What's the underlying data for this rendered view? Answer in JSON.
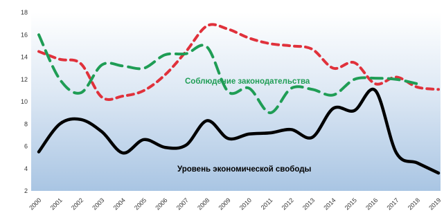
{
  "chart_data": {
    "type": "line",
    "title": "",
    "xlabel": "",
    "ylabel": "",
    "categories": [
      "2000",
      "2001",
      "2002",
      "2003",
      "2004",
      "2005",
      "2006",
      "2007",
      "2008",
      "2009",
      "2010",
      "2011",
      "2012",
      "2013",
      "2014",
      "2015",
      "2016",
      "2017",
      "2018",
      "2019"
    ],
    "ylim": [
      2,
      18
    ],
    "yticks": [
      2,
      4,
      6,
      8,
      10,
      12,
      14,
      16,
      18
    ],
    "grid": false,
    "legend": "none",
    "series": [
      {
        "name": "Уровень экономической свободы",
        "color": "#000000",
        "style": "solid",
        "values": [
          5.5,
          8.0,
          8.4,
          7.3,
          5.4,
          6.6,
          5.9,
          6.1,
          8.3,
          6.7,
          7.1,
          7.2,
          7.5,
          6.8,
          9.4,
          9.2,
          11.0,
          5.4,
          4.5,
          3.6
        ]
      },
      {
        "name": "Соблюдение законодательства",
        "color": "#1f9d55",
        "style": "dashed",
        "values": [
          16.0,
          12.0,
          10.8,
          13.3,
          13.2,
          13.0,
          14.2,
          14.3,
          14.9,
          10.9,
          11.2,
          9.0,
          11.2,
          11.1,
          10.6,
          12.0,
          12.1,
          12.0,
          11.6,
          null
        ]
      },
      {
        "name": "",
        "color": "#e0313b",
        "style": "dashed",
        "values": [
          14.5,
          13.8,
          13.4,
          10.4,
          10.5,
          11.0,
          12.4,
          14.5,
          16.8,
          16.5,
          15.7,
          15.2,
          15.0,
          14.7,
          13.0,
          13.5,
          11.6,
          12.2,
          11.3,
          11.1
        ]
      }
    ],
    "annotations": [
      {
        "text": "Соблюдение законодательства",
        "series": 1
      },
      {
        "text": "Уровень экономической свободы",
        "series": 0
      }
    ]
  }
}
